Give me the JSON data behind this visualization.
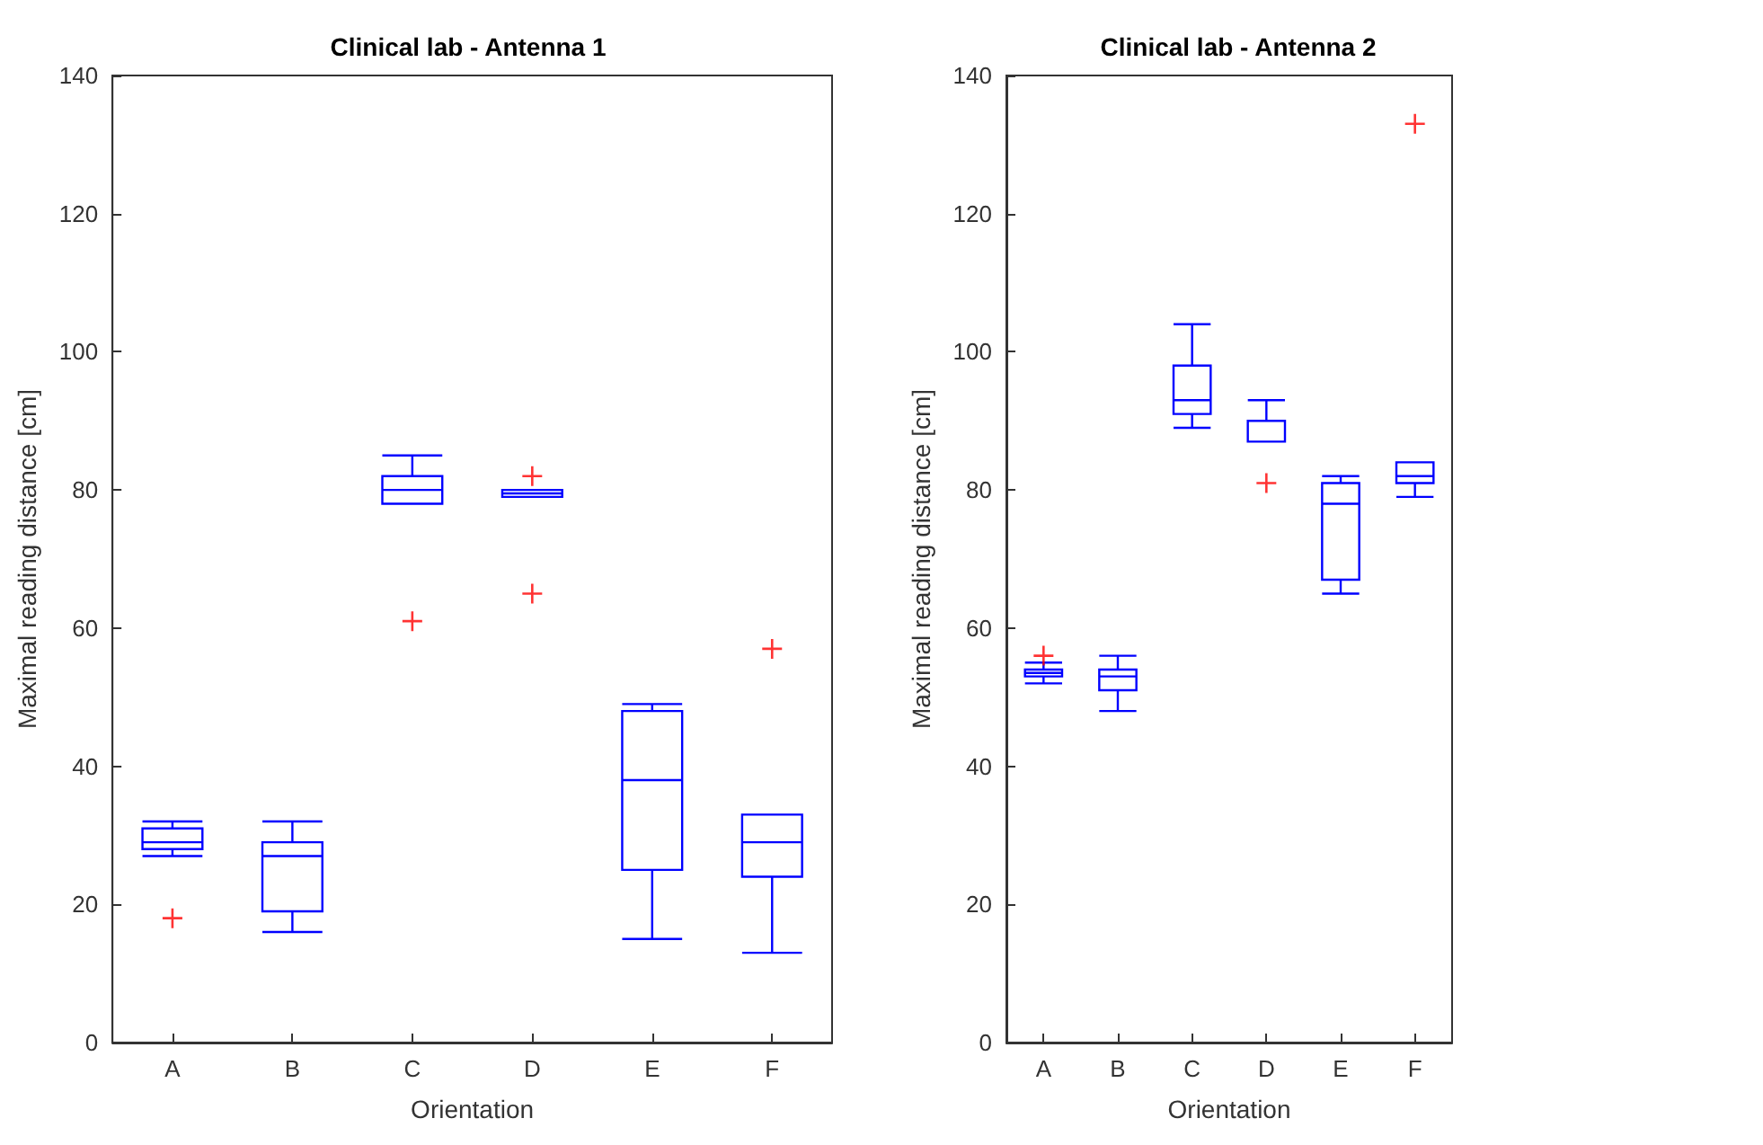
{
  "chart_data": [
    {
      "type": "box",
      "title": "Clinical lab - Antenna 1",
      "xlabel": "Orientation",
      "ylabel": "Maximal reading distance [cm]",
      "categories": [
        "A",
        "B",
        "C",
        "D",
        "E",
        "F"
      ],
      "ylim": [
        0,
        140
      ],
      "yticks": [
        0,
        20,
        40,
        60,
        80,
        100,
        120,
        140
      ],
      "grid": false,
      "marker": "cross",
      "series": [
        {
          "color": "#0000ff",
          "boxes": [
            {
              "low": 27,
              "q1": 28,
              "median": 29,
              "q3": 31,
              "high": 32,
              "outliers": [
                18
              ]
            },
            {
              "low": 16,
              "q1": 19,
              "median": 27,
              "q3": 29,
              "high": 32
            },
            {
              "low": 78,
              "q1": 78,
              "median": 80,
              "q3": 82,
              "high": 85,
              "outliers": [
                61
              ]
            },
            {
              "low": 79,
              "q1": 79,
              "median": 79.5,
              "q3": 80,
              "high": 80,
              "outliers": [
                82,
                65
              ]
            },
            {
              "low": 15,
              "q1": 25,
              "median": 38,
              "q3": 48,
              "high": 49
            },
            {
              "low": 13,
              "q1": 24,
              "median": 29,
              "q3": 33,
              "high": 33,
              "outliers": [
                57
              ]
            }
          ]
        }
      ]
    },
    {
      "type": "box",
      "title": "Clinical lab - Antenna 2",
      "xlabel": "Orientation",
      "ylabel": "Maximal reading distance [cm]",
      "categories": [
        "A",
        "B",
        "C",
        "D",
        "E",
        "F"
      ],
      "ylim": [
        0,
        140
      ],
      "yticks": [
        0,
        20,
        40,
        60,
        80,
        100,
        120,
        140
      ],
      "grid": false,
      "marker": "cross",
      "series": [
        {
          "color": "#0000ff",
          "boxes": [
            {
              "low": 52,
              "q1": 53,
              "median": 53.5,
              "q3": 54,
              "high": 55,
              "outliers": [
                56
              ]
            },
            {
              "low": 48,
              "q1": 51,
              "median": 53,
              "q3": 54,
              "high": 56
            },
            {
              "low": 89,
              "q1": 91,
              "median": 93,
              "q3": 98,
              "high": 104
            },
            {
              "low": 87,
              "q1": 87,
              "median": 90,
              "q3": 90,
              "high": 93,
              "outliers": [
                81
              ]
            },
            {
              "low": 65,
              "q1": 67,
              "median": 78,
              "q3": 81,
              "high": 82
            },
            {
              "low": 79,
              "q1": 81,
              "median": 82,
              "q3": 84,
              "high": 84,
              "outliers": [
                133
              ]
            }
          ]
        }
      ]
    }
  ]
}
